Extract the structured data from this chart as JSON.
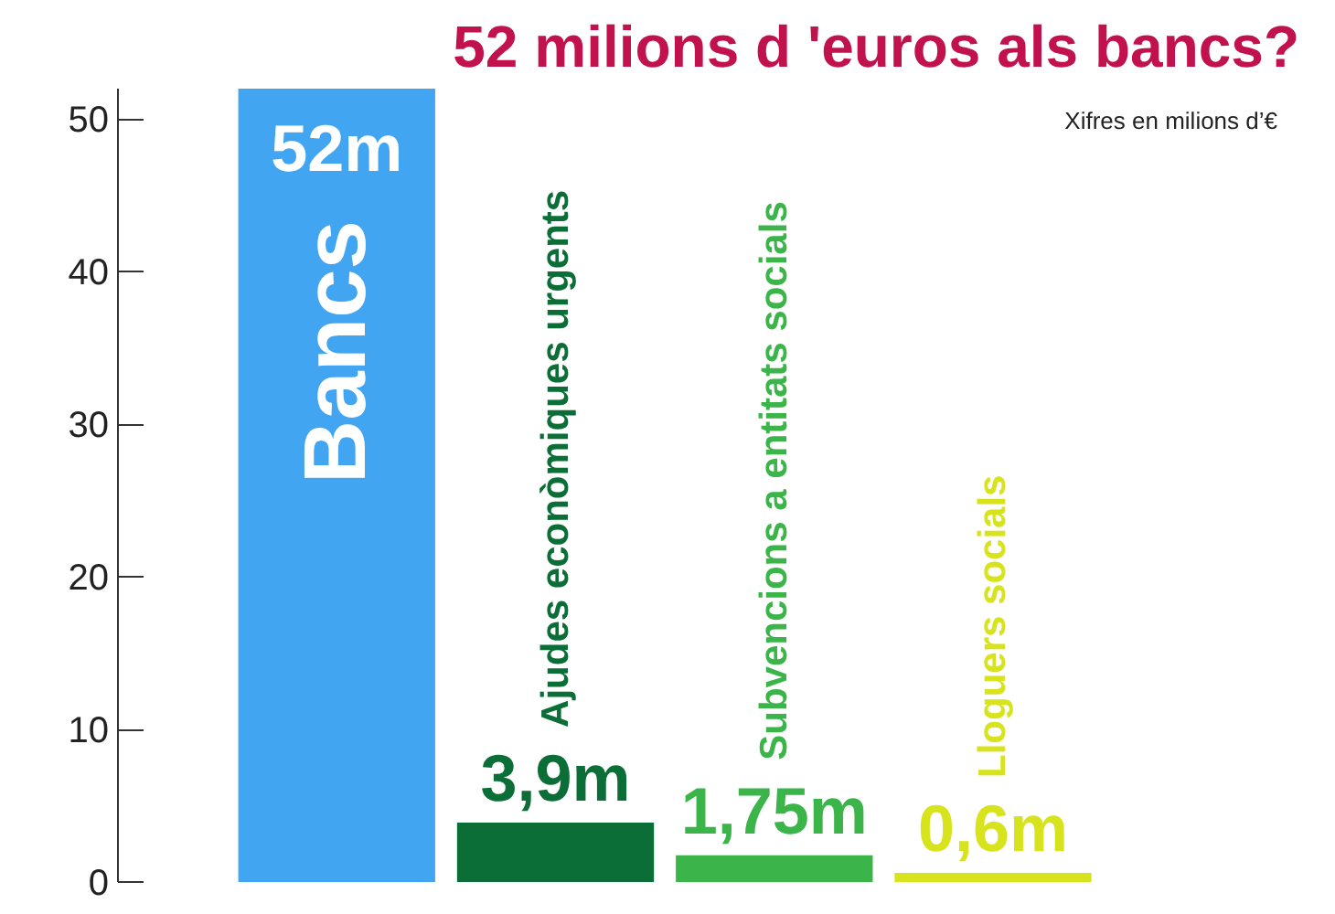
{
  "chart_data": {
    "type": "bar",
    "title": "52 milions d 'euros als bancs?",
    "categories": [
      "Bancs",
      "Ajudes econòmiques urgents",
      "Subvencions a entitats socials",
      "Lloguers socials"
    ],
    "values": [
      52,
      3.9,
      1.75,
      0.6
    ],
    "colors": [
      "#42a5f2",
      "#0b6e37",
      "#3bb54a",
      "#d7e31c"
    ],
    "value_labels": [
      "52m",
      "3,9m",
      "1,75m",
      "0,6m"
    ],
    "annotations": [
      "Xifres en milions d’€"
    ],
    "ylim": [
      0,
      52
    ],
    "yticks": [
      0,
      10,
      20,
      30,
      40,
      50
    ],
    "tick_labels": "y"
  }
}
